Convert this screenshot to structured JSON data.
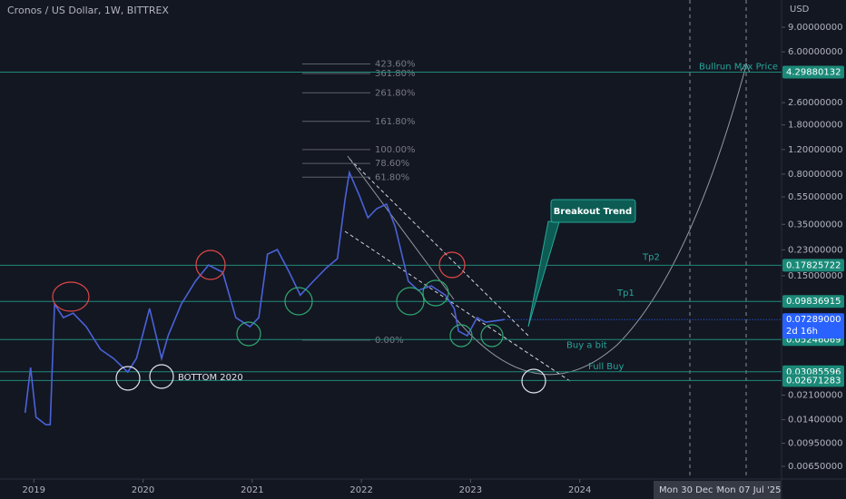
{
  "chart_data": {
    "type": "line",
    "title": "Cronos / US Dollar, 1W, BITTREX",
    "currency": "USD",
    "log_scale": true,
    "grid": false,
    "color": "#4a62d8",
    "x": [
      2018.92,
      2018.97,
      2019.02,
      2019.11,
      2019.15,
      2019.19,
      2019.27,
      2019.36,
      2019.48,
      2019.61,
      2019.73,
      2019.86,
      2019.94,
      2020.06,
      2020.17,
      2020.23,
      2020.35,
      2020.48,
      2020.6,
      2020.73,
      2020.85,
      2020.98,
      2021.06,
      2021.14,
      2021.23,
      2021.34,
      2021.44,
      2021.56,
      2021.68,
      2021.78,
      2021.85,
      2021.89,
      2021.98,
      2022.06,
      2022.14,
      2022.23,
      2022.31,
      2022.43,
      2022.52,
      2022.64,
      2022.77,
      2022.85,
      2022.89,
      2022.97,
      2023.06,
      2023.14,
      2023.26,
      2023.31
    ],
    "values": [
      0.0157,
      0.0331,
      0.0146,
      0.0129,
      0.0129,
      0.094,
      0.0753,
      0.081,
      0.0648,
      0.0446,
      0.0384,
      0.0307,
      0.0384,
      0.0875,
      0.0384,
      0.0558,
      0.094,
      0.137,
      0.179,
      0.159,
      0.0753,
      0.0648,
      0.0753,
      0.214,
      0.231,
      0.159,
      0.109,
      0.137,
      0.171,
      0.199,
      0.526,
      0.823,
      0.567,
      0.39,
      0.453,
      0.488,
      0.336,
      0.137,
      0.118,
      0.127,
      0.109,
      0.0875,
      0.0602,
      0.0558,
      0.0753,
      0.0698,
      0.072,
      0.0729
    ],
    "xlim": [
      2018.69,
      2025.84
    ],
    "xticks": [
      2019,
      2020,
      2021,
      2022,
      2023,
      2024
    ],
    "ylim": [
      0.00527,
      14.1
    ],
    "yticks": [
      {
        "value": 9,
        "label": "9.00000000"
      },
      {
        "value": 6,
        "label": "6.00000000"
      },
      {
        "value": 2.6,
        "label": "2.60000000"
      },
      {
        "value": 1.8,
        "label": "1.80000000"
      },
      {
        "value": 1.2,
        "label": "1.20000000"
      },
      {
        "value": 0.8,
        "label": "0.80000000"
      },
      {
        "value": 0.55,
        "label": "0.55000000"
      },
      {
        "value": 0.35,
        "label": "0.35000000"
      },
      {
        "value": 0.23,
        "label": "0.23000000"
      },
      {
        "value": 0.15,
        "label": "0.15000000"
      },
      {
        "value": 0.021,
        "label": "0.02100000"
      },
      {
        "value": 0.014,
        "label": "0.01400000"
      },
      {
        "value": 0.0095,
        "label": "0.00950000"
      },
      {
        "value": 0.0065,
        "label": "0.00650000"
      }
    ],
    "levels": [
      {
        "value": 4.29880132,
        "label": "Bullrun Max Price"
      },
      {
        "value": 0.17825722,
        "label": "Tp2"
      },
      {
        "value": 0.09836915,
        "label": "Tp1"
      },
      {
        "value": 0.05246069,
        "label": "Buy a bit"
      },
      {
        "value": 0.03085596,
        "label": "Full Buy"
      },
      {
        "value": 0.02671283
      }
    ],
    "last_price": {
      "value": 0.07289,
      "label": "0.07289000",
      "countdown": "2d 16h"
    },
    "fib": {
      "p0": 0.052,
      "p1": 1.2,
      "levels": [
        {
          "value": 423.6,
          "label": "423.60%"
        },
        {
          "value": 361.8,
          "label": "361.80%"
        },
        {
          "value": 261.8,
          "label": "261.80%"
        },
        {
          "value": 161.8,
          "label": "161.80%"
        },
        {
          "value": 100,
          "label": "100.00%"
        },
        {
          "value": 78.6,
          "label": "78.60%"
        },
        {
          "value": 61.8,
          "label": "61.80%"
        },
        {
          "value": 0,
          "label": "0.00%"
        }
      ]
    },
    "annotations": [
      "BOTTOM 2020",
      "Breakout Trend"
    ],
    "time_labels": [
      "Mon 30 Dec '24",
      "Mon 07 Jul '25"
    ]
  }
}
